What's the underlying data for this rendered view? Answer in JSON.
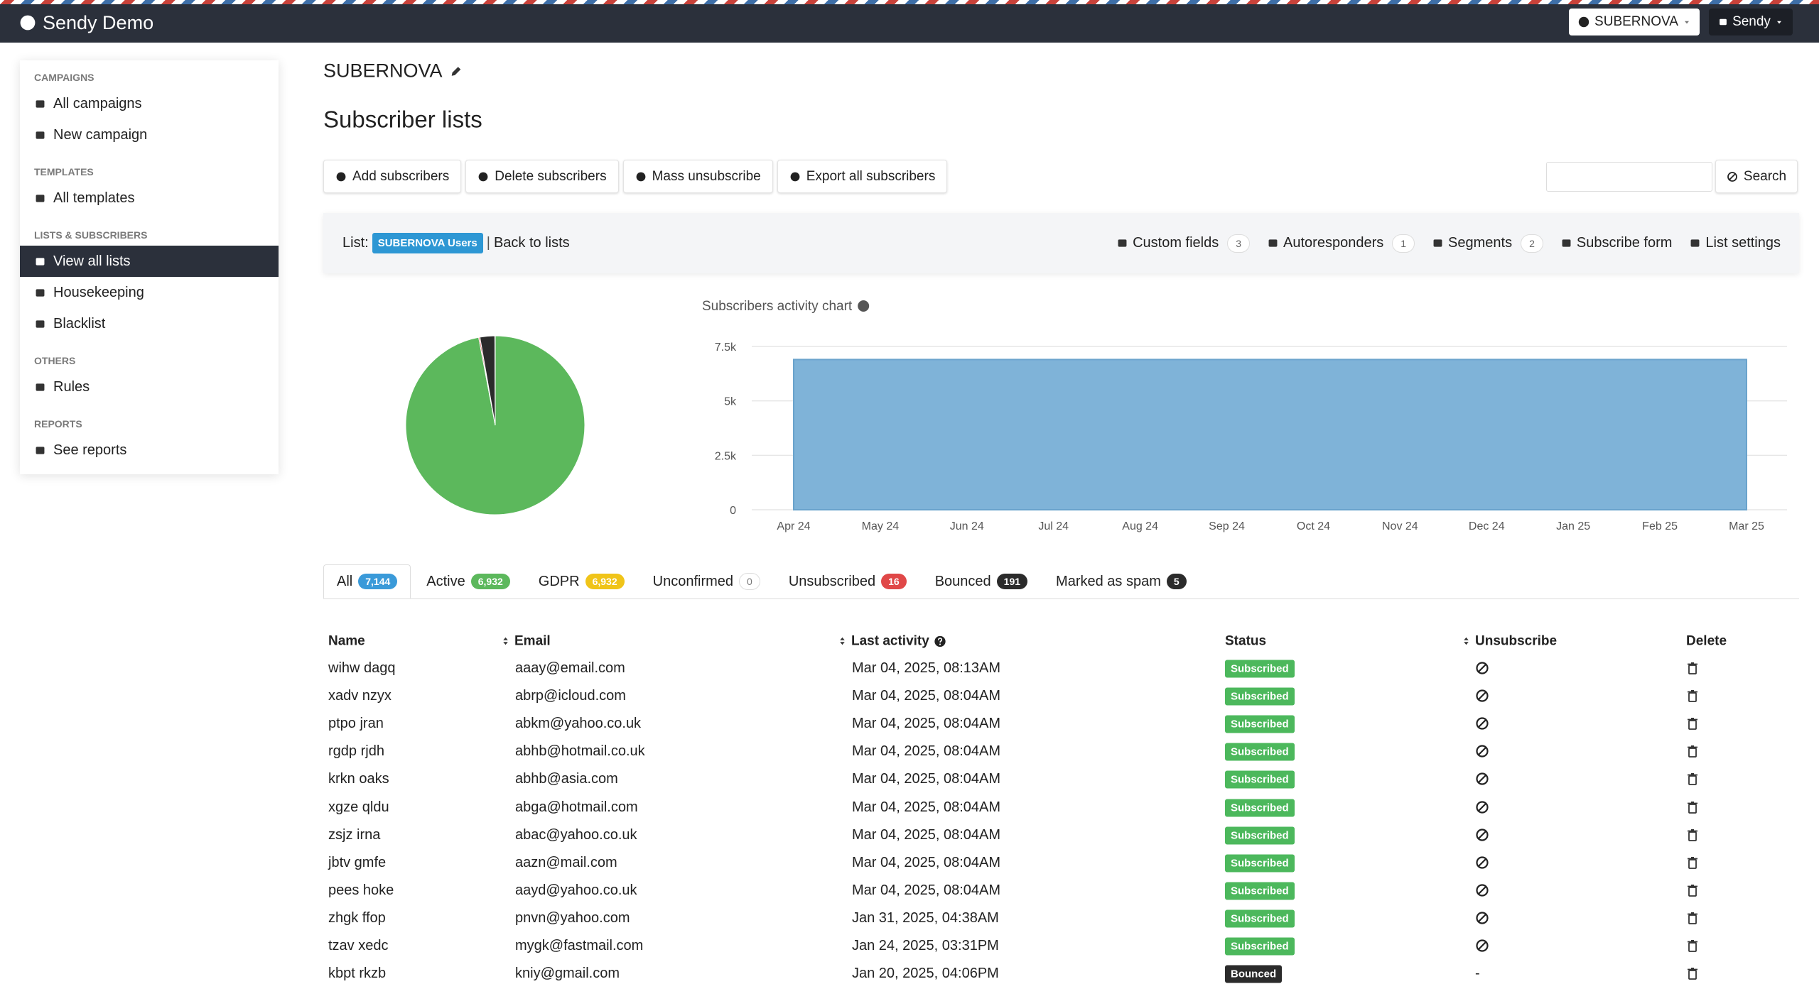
{
  "nav": {
    "brand": "Sendy Demo",
    "brand_menu": "SUBERNOVA",
    "user_menu": "Sendy"
  },
  "sidebar": {
    "sections": [
      {
        "title": "CAMPAIGNS",
        "items": [
          {
            "label": "All campaigns"
          },
          {
            "label": "New campaign"
          }
        ]
      },
      {
        "title": "TEMPLATES",
        "items": [
          {
            "label": "All templates"
          }
        ]
      },
      {
        "title": "LISTS & SUBSCRIBERS",
        "items": [
          {
            "label": "View all lists",
            "active": true
          },
          {
            "label": "Housekeeping"
          },
          {
            "label": "Blacklist"
          }
        ]
      },
      {
        "title": "OTHERS",
        "items": [
          {
            "label": "Rules"
          }
        ]
      },
      {
        "title": "REPORTS",
        "items": [
          {
            "label": "See reports"
          }
        ]
      }
    ]
  },
  "header": {
    "brand": "SUBERNOVA",
    "title": "Subscriber lists"
  },
  "toolbar": {
    "buttons": [
      "Add subscribers",
      "Delete subscribers",
      "Mass unsubscribe",
      "Export all subscribers"
    ],
    "search_button": "Search"
  },
  "list_bar": {
    "prefix": "List:",
    "list_name": "SUBERNOVA Users",
    "separator": "|",
    "back_link": "Back to lists",
    "links": [
      {
        "label": "Custom fields",
        "count": 3
      },
      {
        "label": "Autoresponders",
        "count": 1
      },
      {
        "label": "Segments",
        "count": 2
      },
      {
        "label": "Subscribe form"
      },
      {
        "label": "List settings"
      }
    ]
  },
  "tabs": [
    {
      "label": "All",
      "count": {
        "value": 7144,
        "label": "7,144"
      },
      "color": "#3a9ad9",
      "active": true
    },
    {
      "label": "Active",
      "count": {
        "value": 6932,
        "label": "6,932"
      },
      "color": "#5cb85c",
      "in_pie": true
    },
    {
      "label": "GDPR",
      "count": {
        "value": 6932,
        "label": "6,932"
      },
      "color": "#f0c419"
    },
    {
      "label": "Unconfirmed",
      "count": 0,
      "color": "#ffffff"
    },
    {
      "label": "Unsubscribed",
      "count": 16,
      "color": "#e04848",
      "in_pie": true
    },
    {
      "label": "Bounced",
      "count": 191,
      "color": "#2b2b2b",
      "in_pie": true
    },
    {
      "label": "Marked as spam",
      "count": 5,
      "color": "#2b2b2b",
      "in_pie": true
    }
  ],
  "activity_chart": {
    "type": "area",
    "title": "Subscribers activity chart",
    "x": [
      "Apr 24",
      "May 24",
      "Jun 24",
      "Jul 24",
      "Aug 24",
      "Sep 24",
      "Oct 24",
      "Nov 24",
      "Dec 24",
      "Jan 25",
      "Feb 25",
      "Mar 25"
    ],
    "values": [
      6900,
      6900,
      6900,
      6900,
      6900,
      6900,
      6900,
      6900,
      6900,
      6900,
      6900,
      6900
    ],
    "color": "#7fb3d8",
    "ylim": [
      0,
      7500
    ],
    "yticks": [
      0,
      {
        "value": 2500,
        "label": "2.5k"
      },
      {
        "value": 5000,
        "label": "5k"
      },
      {
        "value": 7500,
        "label": "7.5k"
      }
    ],
    "grid": true
  },
  "table": {
    "columns": [
      "Name",
      "Email",
      "Last activity",
      "Status",
      "Unsubscribe",
      "Delete"
    ],
    "status_colors": {
      "Subscribed": "#4cb85c",
      "Bounced": "#2b2b2b"
    },
    "rows": [
      {
        "name": "wihw dagq",
        "email": "aaay@email.com",
        "last_activity": "Mar 04, 2025, 08:13AM",
        "status": "Subscribed"
      },
      {
        "name": "xadv nzyx",
        "email": "abrp@icloud.com",
        "last_activity": "Mar 04, 2025, 08:04AM",
        "status": "Subscribed"
      },
      {
        "name": "ptpo jran",
        "email": "abkm@yahoo.co.uk",
        "last_activity": "Mar 04, 2025, 08:04AM",
        "status": "Subscribed"
      },
      {
        "name": "rgdp rjdh",
        "email": "abhb@hotmail.co.uk",
        "last_activity": "Mar 04, 2025, 08:04AM",
        "status": "Subscribed"
      },
      {
        "name": "krkn oaks",
        "email": "abhb@asia.com",
        "last_activity": "Mar 04, 2025, 08:04AM",
        "status": "Subscribed"
      },
      {
        "name": "xgze qldu",
        "email": "abga@hotmail.com",
        "last_activity": "Mar 04, 2025, 08:04AM",
        "status": "Subscribed"
      },
      {
        "name": "zsjz irna",
        "email": "abac@yahoo.co.uk",
        "last_activity": "Mar 04, 2025, 08:04AM",
        "status": "Subscribed"
      },
      {
        "name": "jbtv gmfe",
        "email": "aazn@mail.com",
        "last_activity": "Mar 04, 2025, 08:04AM",
        "status": "Subscribed"
      },
      {
        "name": "pees hoke",
        "email": "aayd@yahoo.co.uk",
        "last_activity": "Mar 04, 2025, 08:04AM",
        "status": "Subscribed"
      },
      {
        "name": "zhgk ffop",
        "email": "pnvn@yahoo.com",
        "last_activity": "Jan 31, 2025, 04:38AM",
        "status": "Subscribed"
      },
      {
        "name": "tzav xedc",
        "email": "mygk@fastmail.com",
        "last_activity": "Jan 24, 2025, 03:31PM",
        "status": "Subscribed"
      },
      {
        "name": "kbpt rkzb",
        "email": "kniy@gmail.com",
        "last_activity": "Jan 20, 2025, 04:06PM",
        "status": "Bounced",
        "unsubscribe": "-"
      }
    ]
  }
}
